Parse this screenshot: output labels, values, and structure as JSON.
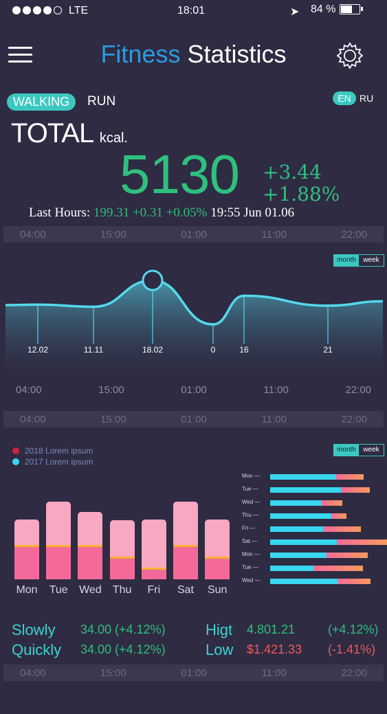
{
  "status_bar": {
    "carrier": "LTE",
    "time": "18:01",
    "battery": "84 %"
  },
  "header": {
    "title_word1": "Fitness",
    "title_word2": "Statistics"
  },
  "mode_tabs": {
    "active": "WALKING",
    "inactive": "RUN"
  },
  "language": {
    "active": "EN",
    "inactive": "RU"
  },
  "summary": {
    "total_label": "TOTAL",
    "unit": "kcal.",
    "value": "5130",
    "delta_abs": "+3.44",
    "delta_pct": "+1.88%",
    "last_hours_label": "Last Hours:",
    "last_hours_values": "199.31 +0.31  +0.05%",
    "last_hours_time": "19:55 Jun 01.06"
  },
  "time_ticks": [
    "04:00",
    "15:00",
    "01:00",
    "11:00",
    "22:00"
  ],
  "toggle": {
    "month": "month",
    "week": "week"
  },
  "line_chart": {
    "point_labels": [
      "12.02",
      "11.11",
      "18.02",
      "0",
      "16",
      "21"
    ]
  },
  "legend": {
    "series_2018": "2018 Lorem ipsum",
    "series_2017": "2017 Lorem ipsum"
  },
  "chart_data": [
    {
      "type": "line",
      "x": [
        "12.02",
        "11.11",
        "18.02",
        "0",
        "16",
        "21"
      ],
      "point_labels": [
        "12.02",
        "11.11",
        "18.02",
        "0",
        "16",
        "21"
      ],
      "y": [
        0.46,
        0.42,
        0.9,
        0.1,
        0.62,
        0.44
      ],
      "xlabel": "",
      "ylabel": ""
    },
    {
      "type": "bar",
      "categories": [
        "Mon",
        "Tue",
        "Wed",
        "Thu",
        "Fri",
        "Sat",
        "Sun"
      ],
      "series": [
        {
          "name": "2018 Lorem ipsum",
          "values": [
            87,
            113,
            98,
            86,
            87,
            113,
            87
          ]
        },
        {
          "name": "2017 Lorem ipsum",
          "values": [
            47,
            47,
            47,
            30,
            14,
            47,
            30
          ]
        }
      ]
    },
    {
      "type": "bar",
      "orientation": "horizontal",
      "categories": [
        "Mon",
        "Tue",
        "Wed",
        "Thu",
        "Fri",
        "Sat",
        "Mon",
        "Tue",
        "Wed"
      ],
      "series": [
        {
          "values": [
            96,
            103,
            75,
            89,
            77,
            97,
            82,
            63,
            99
          ]
        },
        {
          "values": [
            40,
            42,
            30,
            22,
            55,
            75,
            60,
            72,
            47
          ]
        }
      ]
    }
  ],
  "stats": {
    "slowly_label": "Slowly",
    "slowly_value": "34.00 (+4.12%)",
    "quickly_label": "Quickly",
    "quickly_value": "34.00 (+4.12%)",
    "high_label": "Higt",
    "high_value": "4.801.21",
    "high_change": "(+4.12%)",
    "low_label": "Low",
    "low_value": "$1.421.33",
    "low_change": "(-1.41%)"
  },
  "colors": {
    "background": "#2e2b42",
    "accent": "#3cc8c0",
    "green": "#2fbf7e",
    "red": "#f05a5a"
  }
}
